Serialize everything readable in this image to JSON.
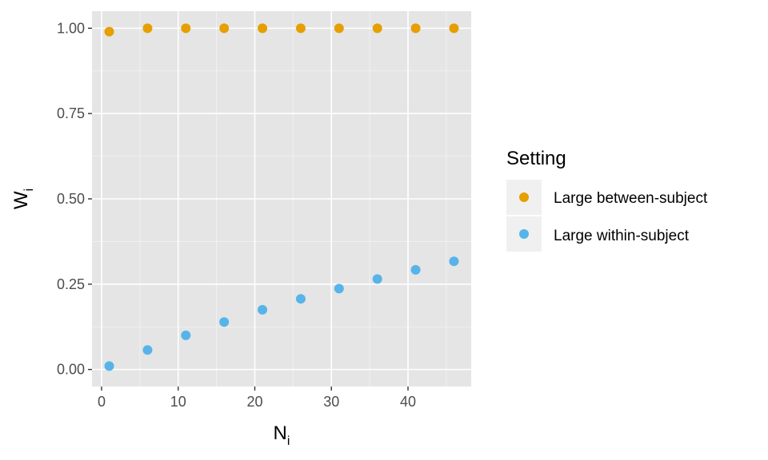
{
  "chart_data": {
    "type": "scatter",
    "title": "",
    "xlabel": {
      "base": "N",
      "sub": "i"
    },
    "ylabel": {
      "base": "W",
      "sub": "i"
    },
    "xlim": [
      -1.25,
      48.25
    ],
    "ylim": [
      -0.05,
      1.05
    ],
    "x_ticks": [
      0,
      10,
      20,
      30,
      40
    ],
    "x_tick_labels": [
      "0",
      "10",
      "20",
      "30",
      "40"
    ],
    "y_ticks": [
      0,
      0.25,
      0.5,
      0.75,
      1.0
    ],
    "y_tick_labels": [
      "0.00",
      "0.25",
      "0.50",
      "0.75",
      "1.00"
    ],
    "grid": true,
    "legend": {
      "title": "Setting",
      "position": "right"
    },
    "series": [
      {
        "name": "Large between-subject",
        "color": "#E69F00",
        "x": [
          1,
          6,
          11,
          16,
          21,
          26,
          31,
          36,
          41,
          46
        ],
        "y": [
          0.99,
          1.0,
          1.0,
          1.0,
          1.0,
          1.0,
          1.0,
          1.0,
          1.0,
          1.0
        ]
      },
      {
        "name": "Large within-subject",
        "color": "#56B4E9",
        "x": [
          1,
          6,
          11,
          16,
          21,
          26,
          31,
          36,
          41,
          46
        ],
        "y": [
          0.01,
          0.057,
          0.1,
          0.139,
          0.175,
          0.207,
          0.237,
          0.265,
          0.292,
          0.317
        ]
      }
    ]
  }
}
